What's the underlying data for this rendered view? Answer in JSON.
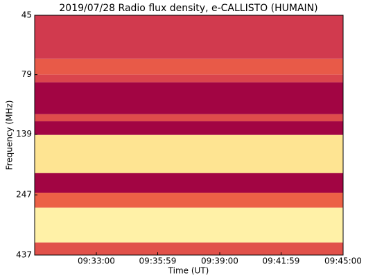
{
  "chart_data": {
    "type": "spectrogram",
    "title": "2019/07/28  Radio flux density, e-CALLISTO (HUMAIN)",
    "x_label": "Time (UT)",
    "y_label": "Frequency (MHz)",
    "xlim": [
      34200,
      35100
    ],
    "xticks": [
      {
        "value": 34380,
        "label": "09:33:00"
      },
      {
        "value": 34559,
        "label": "09:35:59"
      },
      {
        "value": 34740,
        "label": "09:39:00"
      },
      {
        "value": 34919,
        "label": "09:41:59"
      },
      {
        "value": 35100,
        "label": "09:45:00"
      }
    ],
    "ylim": [
      45,
      437
    ],
    "yticks": [
      45,
      79,
      139,
      247,
      437
    ],
    "y_log": true,
    "y_inverted": true,
    "colormap": [
      {
        "value": 0,
        "color": "#9e0142"
      },
      {
        "value": 0.3,
        "color": "#d53e4f"
      },
      {
        "value": 0.5,
        "color": "#f46d43"
      },
      {
        "value": 0.7,
        "color": "#fee08b"
      },
      {
        "value": 0.85,
        "color": "#ffffbf"
      },
      {
        "value": 1,
        "color": "#66c2a5"
      }
    ],
    "bands": [
      {
        "from": 45,
        "to": 68,
        "level": 0.28
      },
      {
        "from": 68,
        "to": 79,
        "level": 0.42
      },
      {
        "from": 79,
        "to": 85,
        "level": 0.33
      },
      {
        "from": 85,
        "to": 115,
        "level": 0.02
      },
      {
        "from": 115,
        "to": 123,
        "level": 0.36
      },
      {
        "from": 123,
        "to": 140,
        "level": 0.02
      },
      {
        "from": 140,
        "to": 201,
        "level": 0.72
      },
      {
        "from": 201,
        "to": 242,
        "level": 0.02
      },
      {
        "from": 242,
        "to": 279,
        "level": 0.45
      },
      {
        "from": 279,
        "to": 388,
        "level": 0.78
      },
      {
        "from": 388,
        "to": 437,
        "level": 0.38
      }
    ]
  }
}
